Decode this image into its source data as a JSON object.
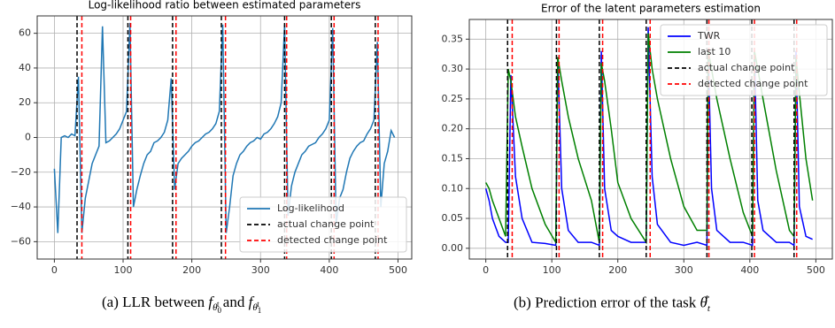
{
  "chart_data": [
    {
      "type": "line",
      "title": "Log-likelihood ratio between estimated parameters",
      "grid": true,
      "legend": "lower right",
      "xlim": [
        -25,
        520
      ],
      "ylim": [
        -70,
        70
      ],
      "xticks": [
        0,
        100,
        200,
        300,
        400,
        500
      ],
      "yticks": [
        {
          "value": -60,
          "label": "−60"
        },
        {
          "value": -40,
          "label": "−40"
        },
        {
          "value": -20,
          "label": "−20"
        },
        0,
        20,
        40,
        60
      ],
      "x": [
        0,
        5,
        10,
        15,
        20,
        25,
        30,
        35,
        40,
        45,
        50,
        55,
        60,
        65,
        70,
        75,
        80,
        85,
        90,
        95,
        100,
        105,
        110,
        115,
        120,
        125,
        130,
        135,
        140,
        145,
        150,
        155,
        160,
        165,
        170,
        175,
        180,
        185,
        190,
        195,
        200,
        205,
        210,
        215,
        220,
        225,
        230,
        235,
        240,
        245,
        250,
        255,
        260,
        265,
        270,
        275,
        280,
        285,
        290,
        295,
        300,
        305,
        310,
        315,
        320,
        325,
        330,
        335,
        340,
        345,
        350,
        355,
        360,
        365,
        370,
        375,
        380,
        385,
        390,
        395,
        400,
        405,
        410,
        415,
        420,
        425,
        430,
        435,
        440,
        445,
        450,
        455,
        460,
        465,
        470,
        475,
        480,
        485,
        490,
        495
      ],
      "series": [
        {
          "name": "Log-likelihood",
          "color": "#1f77b4",
          "values": [
            -18,
            -55,
            0,
            1,
            0,
            2,
            1,
            35,
            -55,
            -35,
            -25,
            -15,
            -10,
            -5,
            64,
            -3,
            -2,
            0,
            2,
            5,
            10,
            15,
            66,
            -40,
            -30,
            -22,
            -15,
            -10,
            -8,
            -3,
            -2,
            0,
            3,
            10,
            34,
            -30,
            -15,
            -12,
            -10,
            -8,
            -5,
            -3,
            -2,
            0,
            2,
            3,
            5,
            8,
            15,
            65,
            -55,
            -40,
            -22,
            -15,
            -10,
            -8,
            -5,
            -3,
            -2,
            0,
            -1,
            2,
            3,
            5,
            8,
            12,
            20,
            65,
            -45,
            -28,
            -20,
            -15,
            -10,
            -8,
            -5,
            -4,
            -3,
            0,
            2,
            5,
            10,
            63,
            -50,
            -35,
            -30,
            -20,
            -12,
            -8,
            -5,
            -3,
            -2,
            2,
            5,
            10,
            55,
            -40,
            -15,
            -8,
            4,
            0
          ]
        }
      ],
      "vlines": [
        {
          "name": "actual change point",
          "color": "#000000",
          "values": [
            33,
            107,
            172,
            243,
            335,
            403,
            467
          ]
        },
        {
          "name": "detected change point",
          "color": "#ff0000",
          "values": [
            40,
            111,
            177,
            249,
            338,
            407,
            471
          ]
        }
      ]
    },
    {
      "type": "line",
      "title": "Error of the latent parameters estimation",
      "grid": true,
      "legend": "upper right",
      "xlim": [
        -25,
        525
      ],
      "ylim": [
        -0.018,
        0.383
      ],
      "xticks": [
        0,
        100,
        200,
        300,
        400,
        500
      ],
      "yticks": [
        {
          "value": 0,
          "label": "0.00"
        },
        {
          "value": 0.05,
          "label": "0.05"
        },
        {
          "value": 0.1,
          "label": "0.10"
        },
        {
          "value": 0.15,
          "label": "0.15"
        },
        {
          "value": 0.2,
          "label": "0.20"
        },
        {
          "value": 0.25,
          "label": "0.25"
        },
        {
          "value": 0.3,
          "label": "0.30"
        },
        {
          "value": 0.35,
          "label": "0.35"
        }
      ],
      "x": [
        0,
        5,
        10,
        20,
        30,
        34,
        38,
        45,
        55,
        70,
        90,
        106,
        109,
        115,
        125,
        140,
        160,
        172,
        175,
        180,
        190,
        200,
        220,
        243,
        246,
        252,
        260,
        280,
        300,
        320,
        335,
        337,
        342,
        350,
        370,
        390,
        404,
        407,
        412,
        420,
        440,
        460,
        467,
        470,
        475,
        485,
        495
      ],
      "series": [
        {
          "name": "TWR",
          "color": "#0000ff",
          "values": [
            0.1,
            0.08,
            0.05,
            0.02,
            0.01,
            0.01,
            0.29,
            0.12,
            0.05,
            0.01,
            0.008,
            0.005,
            0.32,
            0.1,
            0.03,
            0.01,
            0.01,
            0.005,
            0.33,
            0.1,
            0.03,
            0.02,
            0.01,
            0.01,
            0.37,
            0.12,
            0.04,
            0.01,
            0.005,
            0.01,
            0.005,
            0.33,
            0.1,
            0.03,
            0.01,
            0.01,
            0.005,
            0.33,
            0.08,
            0.03,
            0.01,
            0.01,
            0.005,
            0.33,
            0.07,
            0.02,
            0.015
          ]
        },
        {
          "name": "last 10",
          "color": "#008000",
          "values": [
            0.11,
            0.1,
            0.08,
            0.05,
            0.02,
            0.3,
            0.28,
            0.22,
            0.17,
            0.1,
            0.04,
            0.01,
            0.32,
            0.28,
            0.22,
            0.15,
            0.08,
            0.01,
            0.31,
            0.28,
            0.2,
            0.11,
            0.05,
            0.01,
            0.36,
            0.3,
            0.25,
            0.15,
            0.07,
            0.03,
            0.03,
            0.33,
            0.3,
            0.25,
            0.15,
            0.06,
            0.02,
            0.33,
            0.3,
            0.25,
            0.13,
            0.03,
            0.02,
            0.32,
            0.26,
            0.15,
            0.08
          ]
        }
      ],
      "vlines": [
        {
          "name": "actual change point",
          "color": "#000000",
          "values": [
            33,
            107,
            172,
            243,
            335,
            403,
            467
          ]
        },
        {
          "name": "detected change point",
          "color": "#ff0000",
          "values": [
            40,
            111,
            177,
            249,
            338,
            407,
            471
          ]
        }
      ]
    }
  ],
  "captions": {
    "a": [
      "(a) LLR between",
      "f",
      "θ",
      "0",
      "t",
      "and",
      "f",
      "θ",
      "1",
      "t"
    ],
    "b": [
      "(b) Prediction error of the task",
      "θ",
      "t",
      "*"
    ]
  }
}
